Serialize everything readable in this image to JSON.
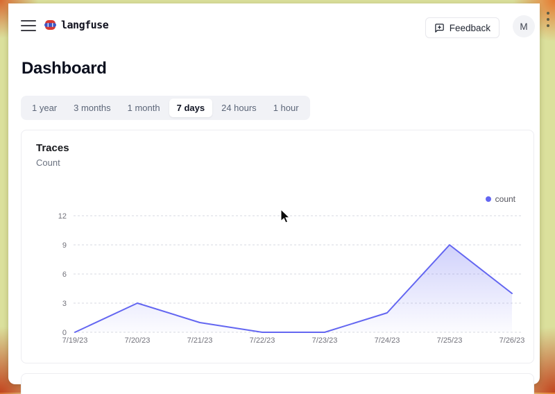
{
  "header": {
    "brand": "langfuse",
    "feedback_label": "Feedback",
    "avatar_initial": "M"
  },
  "page": {
    "title": "Dashboard"
  },
  "time_tabs": {
    "active": "7 days",
    "items": [
      {
        "label": "1 year"
      },
      {
        "label": "3 months"
      },
      {
        "label": "1 month"
      },
      {
        "label": "7 days"
      },
      {
        "label": "24 hours"
      },
      {
        "label": "1 hour"
      }
    ]
  },
  "traces_card": {
    "title": "Traces",
    "subtitle": "Count",
    "legend": [
      {
        "label": "count",
        "color": "#6366f1"
      }
    ]
  },
  "chart_data": {
    "type": "area",
    "title": "Traces",
    "ylabel": "Count",
    "x": [
      "7/19/23",
      "7/20/23",
      "7/21/23",
      "7/22/23",
      "7/23/23",
      "7/24/23",
      "7/25/23",
      "7/26/23"
    ],
    "series": [
      {
        "name": "count",
        "values": [
          0,
          3,
          1,
          0,
          0,
          2,
          9,
          4
        ]
      }
    ],
    "ylim": [
      0,
      12
    ],
    "yticks": [
      0,
      3,
      6,
      9,
      12
    ],
    "grid": true,
    "legend_position": "top-right",
    "line_color": "#6366f1",
    "grid_color": "#d7d9e0"
  },
  "colors": {
    "accent": "#6366f1",
    "frame_base": "#dbe09c",
    "frame_corner": "#c2451f",
    "text_primary": "#0b0f1e",
    "text_muted": "#6b7280"
  }
}
